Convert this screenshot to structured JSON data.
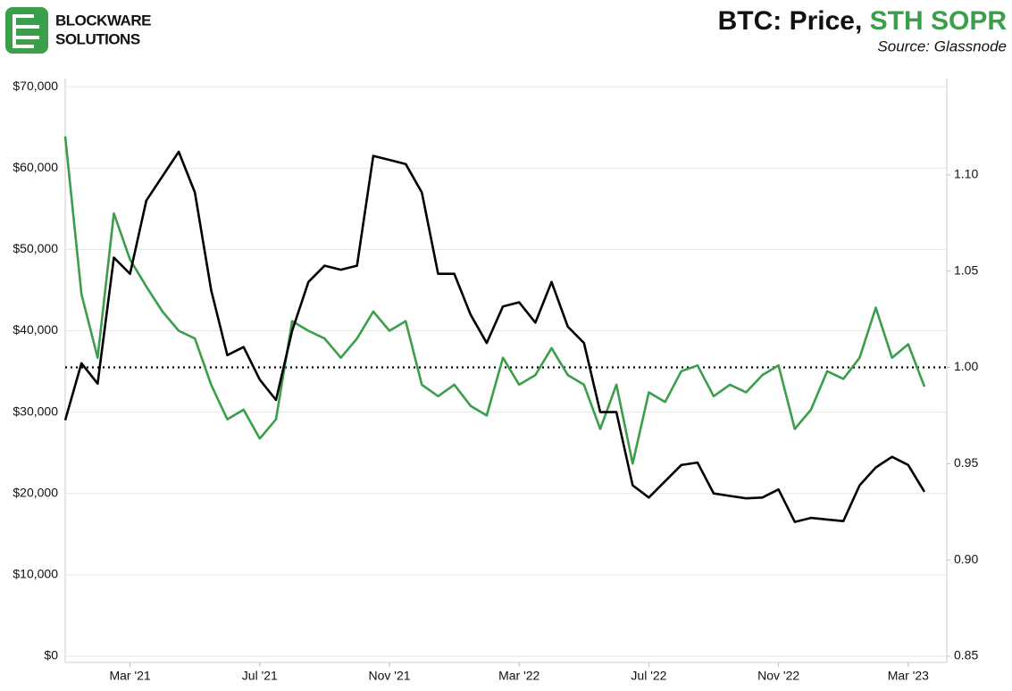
{
  "chart_data": {
    "type": "line",
    "title": [
      {
        "text": "BTC: Price, ",
        "color": "#111111"
      },
      {
        "text": "STH SOPR",
        "color": "#3a9e4a"
      }
    ],
    "source": "Source: Glassnode",
    "brand": [
      "BLOCKWARE",
      "SOLUTIONS"
    ],
    "categories": [
      null,
      null,
      null,
      null,
      "Mar '21",
      null,
      null,
      null,
      null,
      null,
      null,
      null,
      "Jul '21",
      null,
      null,
      null,
      null,
      null,
      null,
      null,
      "Nov '21",
      null,
      null,
      null,
      null,
      null,
      null,
      null,
      "Mar '22",
      null,
      null,
      null,
      null,
      null,
      null,
      null,
      "Jul '22",
      null,
      null,
      null,
      null,
      null,
      null,
      null,
      "Nov '22",
      null,
      null,
      null,
      null,
      null,
      null,
      null,
      "Mar '23",
      null
    ],
    "series": [
      {
        "name": "STH SOPR",
        "color": "#3a9e4a",
        "axis": "y2",
        "values": [
          1.12,
          1.038,
          1.005,
          1.08,
          1.056,
          1.042,
          1.029,
          1.019,
          1.015,
          0.991,
          0.973,
          0.978,
          0.963,
          0.973,
          1.024,
          1.019,
          1.015,
          1.005,
          1.015,
          1.029,
          1.019,
          1.024,
          0.991,
          0.985,
          0.991,
          0.98,
          0.975,
          1.005,
          0.991,
          0.996,
          1.01,
          0.996,
          0.991,
          0.968,
          0.991,
          0.95,
          0.987,
          0.982,
          0.998,
          1.001,
          0.985,
          0.991,
          0.987,
          0.996,
          1.001,
          0.968,
          0.978,
          0.998,
          0.994,
          1.005,
          1.031,
          1.005,
          1.012,
          0.99
        ]
      },
      {
        "name": "Price",
        "color": "#000000",
        "values": [
          29000,
          36000,
          33500,
          49000,
          47000,
          56000,
          59000,
          62000,
          57000,
          45000,
          37000,
          38000,
          34000,
          31500,
          40000,
          46000,
          48000,
          47500,
          48000,
          61500,
          61000,
          60500,
          57000,
          47000,
          47000,
          42000,
          38500,
          43000,
          43500,
          41000,
          46000,
          40500,
          38500,
          30000,
          30000,
          21000,
          19500,
          21500,
          23500,
          23800,
          20000,
          19700,
          19400,
          19500,
          20500,
          16500,
          17000,
          16800,
          16600,
          21000,
          23200,
          24500,
          23500,
          20200
        ]
      }
    ],
    "ylim": [
      0,
      71000
    ],
    "yticks": [
      {
        "value": 0,
        "label": "$0"
      },
      {
        "value": 10000,
        "label": "$10,000"
      },
      {
        "value": 20000,
        "label": "$20,000"
      },
      {
        "value": 30000,
        "label": "$30,000"
      },
      {
        "value": 40000,
        "label": "$40,000"
      },
      {
        "value": 50000,
        "label": "$50,000"
      },
      {
        "value": 60000,
        "label": "$60,000"
      },
      {
        "value": 70000,
        "label": "$70,000"
      }
    ],
    "y2lim": [
      0.85,
      1.15
    ],
    "y2ticks": [
      0.85,
      {
        "value": 0.9,
        "label": "0.90"
      },
      0.95,
      {
        "value": 1,
        "label": "1.00"
      },
      1.05,
      {
        "value": 1.1,
        "label": "1.10"
      }
    ],
    "reference_line": {
      "value": 1,
      "axis": "y2"
    },
    "grid": true
  }
}
